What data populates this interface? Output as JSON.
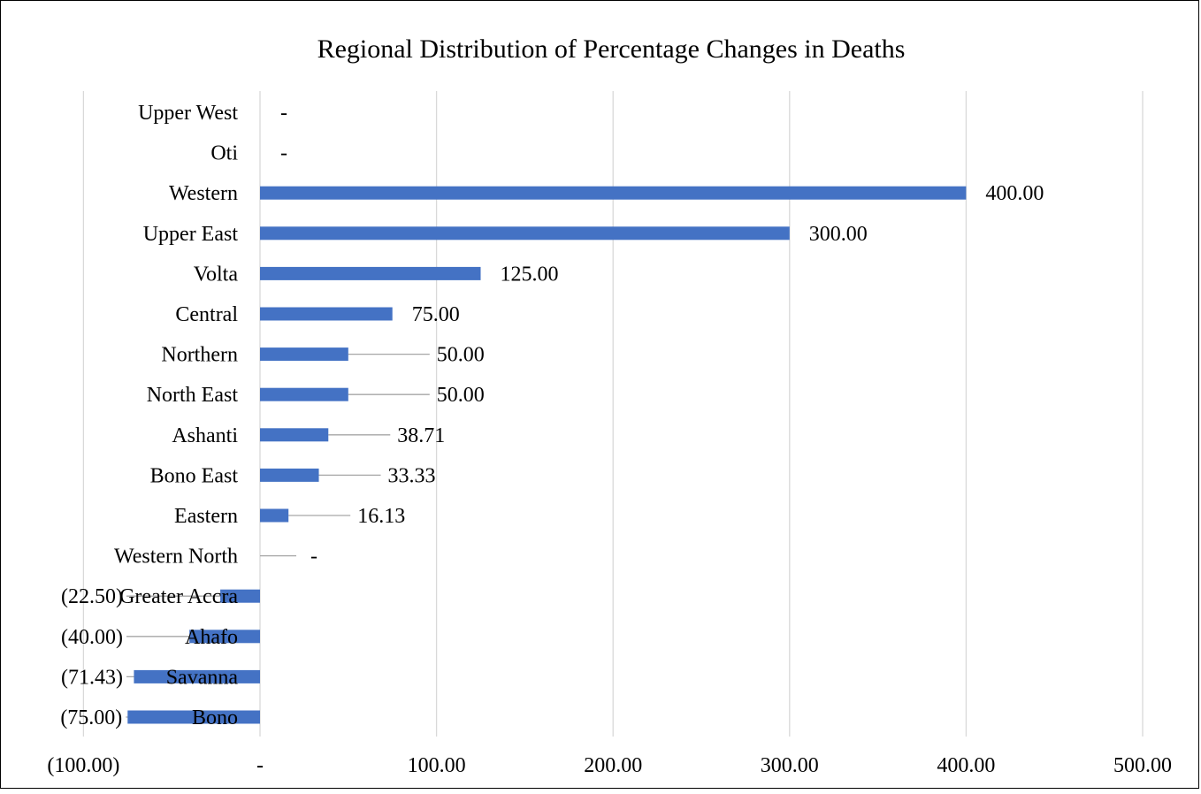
{
  "chart_data": {
    "type": "bar",
    "orientation": "horizontal",
    "title": "Regional Distribution of Percentage Changes in Deaths",
    "xlabel": "",
    "ylabel": "",
    "xlim": [
      -100,
      500
    ],
    "grid": true,
    "legend": "none",
    "bar_color": "#4472C4",
    "x_tick_labels": [
      "(100.00)",
      "-",
      "100.00",
      "200.00",
      "300.00",
      "400.00",
      "500.00"
    ],
    "x_tick_values": [
      -100,
      0,
      100,
      200,
      300,
      400,
      500
    ],
    "categories": [
      "Upper West",
      "Oti",
      "Western",
      "Upper East",
      "Volta",
      "Central",
      "Northern",
      "North East",
      "Ashanti",
      "Bono East",
      "Eastern",
      "Western North",
      "Greater Accra",
      "Ahafo",
      "Savanna",
      "Bono"
    ],
    "values": [
      0,
      0,
      400,
      300,
      125,
      75,
      50,
      50,
      38.71,
      33.33,
      16.13,
      0,
      -22.5,
      -40,
      -71.43,
      -75
    ],
    "data_labels": [
      "-",
      "-",
      "400.00",
      "300.00",
      "125.00",
      "75.00",
      "50.00",
      "50.00",
      "38.71",
      "33.33",
      "16.13",
      "-",
      "(22.50)",
      "(40.00)",
      "(71.43)",
      "(75.00)"
    ]
  }
}
